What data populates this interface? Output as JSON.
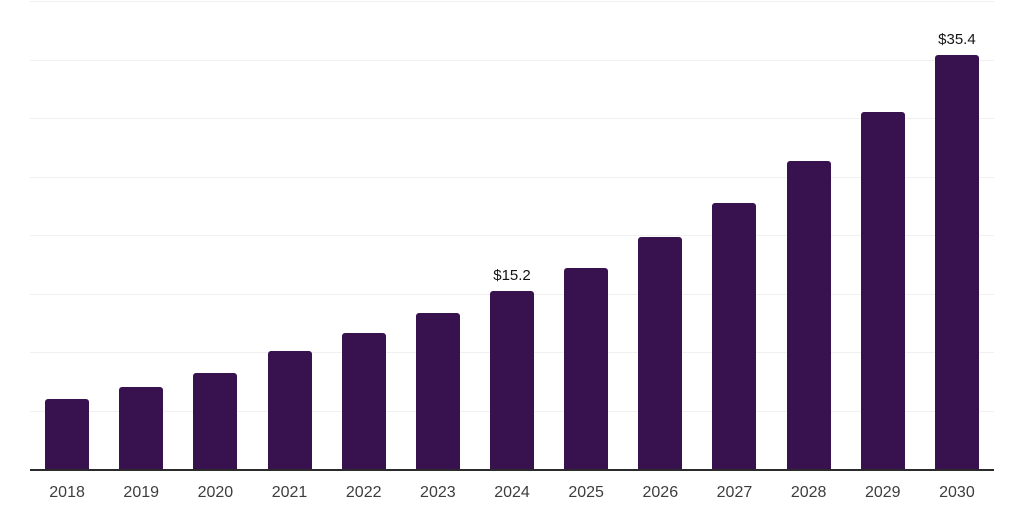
{
  "chart_data": {
    "type": "bar",
    "title": "",
    "xlabel": "",
    "ylabel": "",
    "categories": [
      "2018",
      "2019",
      "2020",
      "2021",
      "2022",
      "2023",
      "2024",
      "2025",
      "2026",
      "2027",
      "2028",
      "2029",
      "2030"
    ],
    "values": [
      6.0,
      7.0,
      8.2,
      10.1,
      11.6,
      13.3,
      15.2,
      17.2,
      19.8,
      22.7,
      26.3,
      30.5,
      35.4
    ],
    "value_labels": {
      "2024": "$15.2",
      "2030": "$35.4"
    },
    "ylim": [
      0,
      40
    ],
    "gridline_step": 5,
    "grid": "horizontal-only",
    "legend": "none",
    "y_tick_labels_visible": false,
    "colors": {
      "bar": "#38124F",
      "gridline": "#f0f0f0",
      "axis_line": "#2b2b2b",
      "tick_label": "#3d3d3d",
      "value_label": "#141414",
      "background": "#ffffff"
    }
  }
}
